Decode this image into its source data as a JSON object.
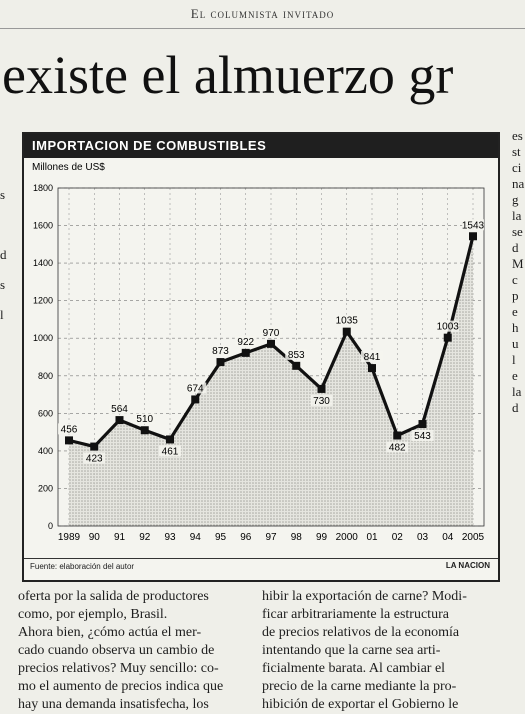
{
  "header": {
    "section": "El columnista invitado"
  },
  "headline": "existe el almuerzo gr",
  "chart_data": {
    "type": "line",
    "title": "IMPORTACION DE COMBUSTIBLES",
    "ylabel": "Millones de US$",
    "categories": [
      "1989",
      "90",
      "91",
      "92",
      "93",
      "94",
      "95",
      "96",
      "97",
      "98",
      "99",
      "2000",
      "01",
      "02",
      "03",
      "04",
      "2005"
    ],
    "values": [
      456,
      423,
      564,
      510,
      461,
      674,
      873,
      922,
      970,
      853,
      730,
      1035,
      841,
      482,
      543,
      1003,
      1543
    ],
    "ylim": [
      0,
      1800
    ],
    "yticks": [
      0,
      200,
      400,
      600,
      800,
      1000,
      1200,
      1400,
      1600,
      1800
    ],
    "grid": true,
    "label_position": [
      "above",
      "below",
      "above",
      "above",
      "below",
      "above",
      "above",
      "above",
      "above",
      "above",
      "below",
      "above",
      "above",
      "below",
      "below",
      "above",
      "above"
    ],
    "source": "Fuente: elaboración del autor",
    "credit": "LA NACION"
  },
  "body_text": {
    "left": [
      "oferta por la salida de productores",
      "como, por ejemplo, Brasil.",
      "Ahora bien, ¿cómo actúa el mer-",
      "cado cuando observa un cambio de",
      "precios relativos? Muy sencillo: co-",
      "mo el aumento de precios indica que",
      "hay una demanda insatisfecha, los"
    ],
    "right": [
      "hibir la exportación de carne? Modi-",
      "ficar arbitrariamente la estructura",
      "de precios relativos de la economía",
      "intentando que la carne sea arti-",
      "ficialmente barata. Al cambiar el",
      "precio de la carne mediante la pro-",
      "hibición de exportar el Gobierno le"
    ],
    "right_edge": [
      "es",
      "st",
      "ci",
      "na",
      "g",
      "la",
      "se",
      "d",
      "M",
      "c",
      "p",
      "e",
      "h",
      "u",
      "l",
      "e",
      "la",
      "d",
      "",
      ""
    ],
    "left_edge": [
      "s",
      "",
      "d",
      "s",
      "l"
    ]
  }
}
